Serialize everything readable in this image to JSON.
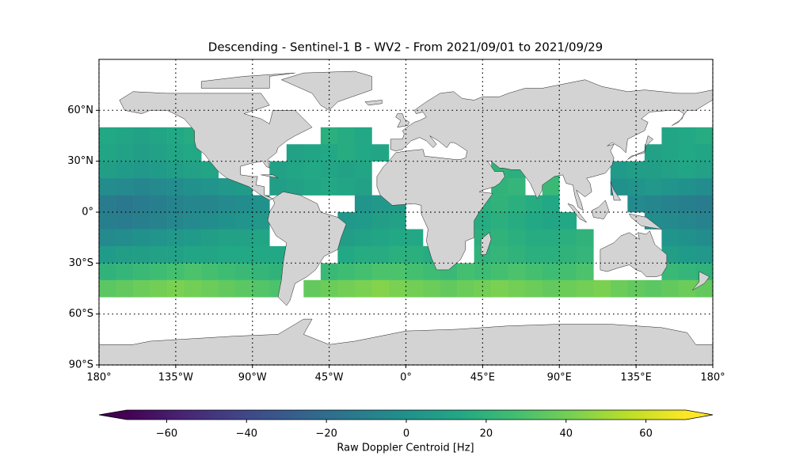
{
  "chart_data": {
    "type": "heatmap",
    "title": "Descending - Sentinel-1 B - WV2 - From 2021/09/01 to 2021/09/29",
    "xlim": [
      -180,
      180
    ],
    "ylim": [
      -90,
      90
    ],
    "xticks": [
      {
        "value": -180,
        "label": "180°"
      },
      {
        "value": -135,
        "label": "135°W"
      },
      {
        "value": -90,
        "label": "90°W"
      },
      {
        "value": -45,
        "label": "45°W"
      },
      {
        "value": 0,
        "label": "0°"
      },
      {
        "value": 45,
        "label": "45°E"
      },
      {
        "value": 90,
        "label": "90°E"
      },
      {
        "value": 135,
        "label": "135°E"
      },
      {
        "value": 180,
        "label": "180°"
      }
    ],
    "yticks": [
      {
        "value": -90,
        "label": "90°S"
      },
      {
        "value": -60,
        "label": "60°S"
      },
      {
        "value": -30,
        "label": "30°S"
      },
      {
        "value": 0,
        "label": "0°"
      },
      {
        "value": 30,
        "label": "30°N"
      },
      {
        "value": 60,
        "label": "60°N"
      }
    ],
    "grid": true,
    "x": [
      -180,
      -170,
      -160,
      -150,
      -140,
      -130,
      -120,
      -110,
      -100,
      -90,
      -80,
      -70,
      -60,
      -50,
      -40,
      -30,
      -20,
      -10,
      0,
      10,
      20,
      30,
      40,
      50,
      60,
      70,
      80,
      90,
      100,
      110,
      120,
      130,
      140,
      150,
      160,
      170
    ],
    "y": [
      50,
      40,
      30,
      20,
      10,
      0,
      -10,
      -20,
      -30,
      -40
    ],
    "values": [
      [
        14,
        12,
        10,
        12,
        14,
        16,
        null,
        null,
        null,
        null,
        null,
        null,
        null,
        18,
        16,
        14,
        null,
        null,
        null,
        null,
        null,
        null,
        null,
        null,
        null,
        null,
        null,
        null,
        null,
        null,
        null,
        null,
        null,
        12,
        14,
        16
      ],
      [
        12,
        10,
        8,
        10,
        12,
        14,
        null,
        null,
        null,
        null,
        null,
        10,
        12,
        14,
        16,
        14,
        12,
        null,
        null,
        null,
        null,
        null,
        null,
        null,
        null,
        null,
        null,
        null,
        null,
        null,
        null,
        null,
        10,
        12,
        14,
        12
      ],
      [
        8,
        6,
        4,
        6,
        8,
        10,
        12,
        null,
        null,
        null,
        10,
        12,
        14,
        12,
        10,
        12,
        null,
        null,
        null,
        null,
        null,
        null,
        null,
        20,
        18,
        null,
        22,
        null,
        null,
        null,
        6,
        8,
        8,
        10,
        12,
        10
      ],
      [
        -2,
        -4,
        -6,
        -4,
        -2,
        0,
        2,
        4,
        6,
        null,
        8,
        10,
        12,
        14,
        12,
        10,
        null,
        null,
        null,
        null,
        null,
        null,
        null,
        20,
        22,
        null,
        24,
        null,
        null,
        null,
        0,
        2,
        4,
        2,
        0,
        -2
      ],
      [
        -12,
        -14,
        -12,
        -10,
        -8,
        -6,
        -6,
        -4,
        -2,
        0,
        null,
        null,
        null,
        null,
        null,
        2,
        4,
        6,
        null,
        null,
        null,
        null,
        18,
        20,
        18,
        16,
        14,
        null,
        null,
        null,
        null,
        -4,
        -6,
        -8,
        -10,
        -12
      ],
      [
        -10,
        -12,
        -10,
        -8,
        -6,
        -4,
        -2,
        0,
        2,
        4,
        null,
        null,
        null,
        null,
        4,
        6,
        8,
        10,
        null,
        null,
        null,
        null,
        16,
        18,
        16,
        14,
        12,
        14,
        null,
        null,
        null,
        null,
        -2,
        -4,
        -6,
        -8
      ],
      [
        -4,
        -2,
        0,
        2,
        4,
        6,
        8,
        10,
        10,
        12,
        null,
        null,
        null,
        null,
        8,
        10,
        12,
        14,
        14,
        null,
        null,
        null,
        18,
        20,
        18,
        16,
        16,
        18,
        20,
        null,
        null,
        null,
        null,
        2,
        0,
        -2
      ],
      [
        6,
        8,
        8,
        10,
        10,
        12,
        12,
        14,
        14,
        14,
        14,
        null,
        null,
        null,
        14,
        16,
        16,
        18,
        18,
        16,
        null,
        null,
        20,
        22,
        20,
        18,
        18,
        20,
        22,
        null,
        null,
        null,
        null,
        8,
        6,
        4
      ],
      [
        20,
        22,
        24,
        26,
        28,
        30,
        28,
        26,
        24,
        22,
        20,
        null,
        null,
        24,
        26,
        28,
        30,
        30,
        28,
        26,
        24,
        28,
        26,
        28,
        30,
        28,
        26,
        28,
        30,
        null,
        null,
        null,
        null,
        24,
        22,
        20
      ],
      [
        34,
        36,
        38,
        40,
        42,
        40,
        38,
        36,
        34,
        32,
        30,
        null,
        36,
        38,
        40,
        42,
        44,
        42,
        40,
        38,
        36,
        38,
        40,
        42,
        40,
        38,
        36,
        38,
        40,
        42,
        38,
        36,
        34,
        36,
        38,
        36
      ]
    ],
    "colorbar": {
      "label": "Raw Doppler Centroid [Hz]",
      "colormap": "viridis",
      "lim": [
        -70,
        70
      ],
      "ticks": [
        {
          "value": -60,
          "label": "−60"
        },
        {
          "value": -40,
          "label": "−40"
        },
        {
          "value": -20,
          "label": "−20"
        },
        0,
        20,
        40,
        60
      ]
    }
  }
}
